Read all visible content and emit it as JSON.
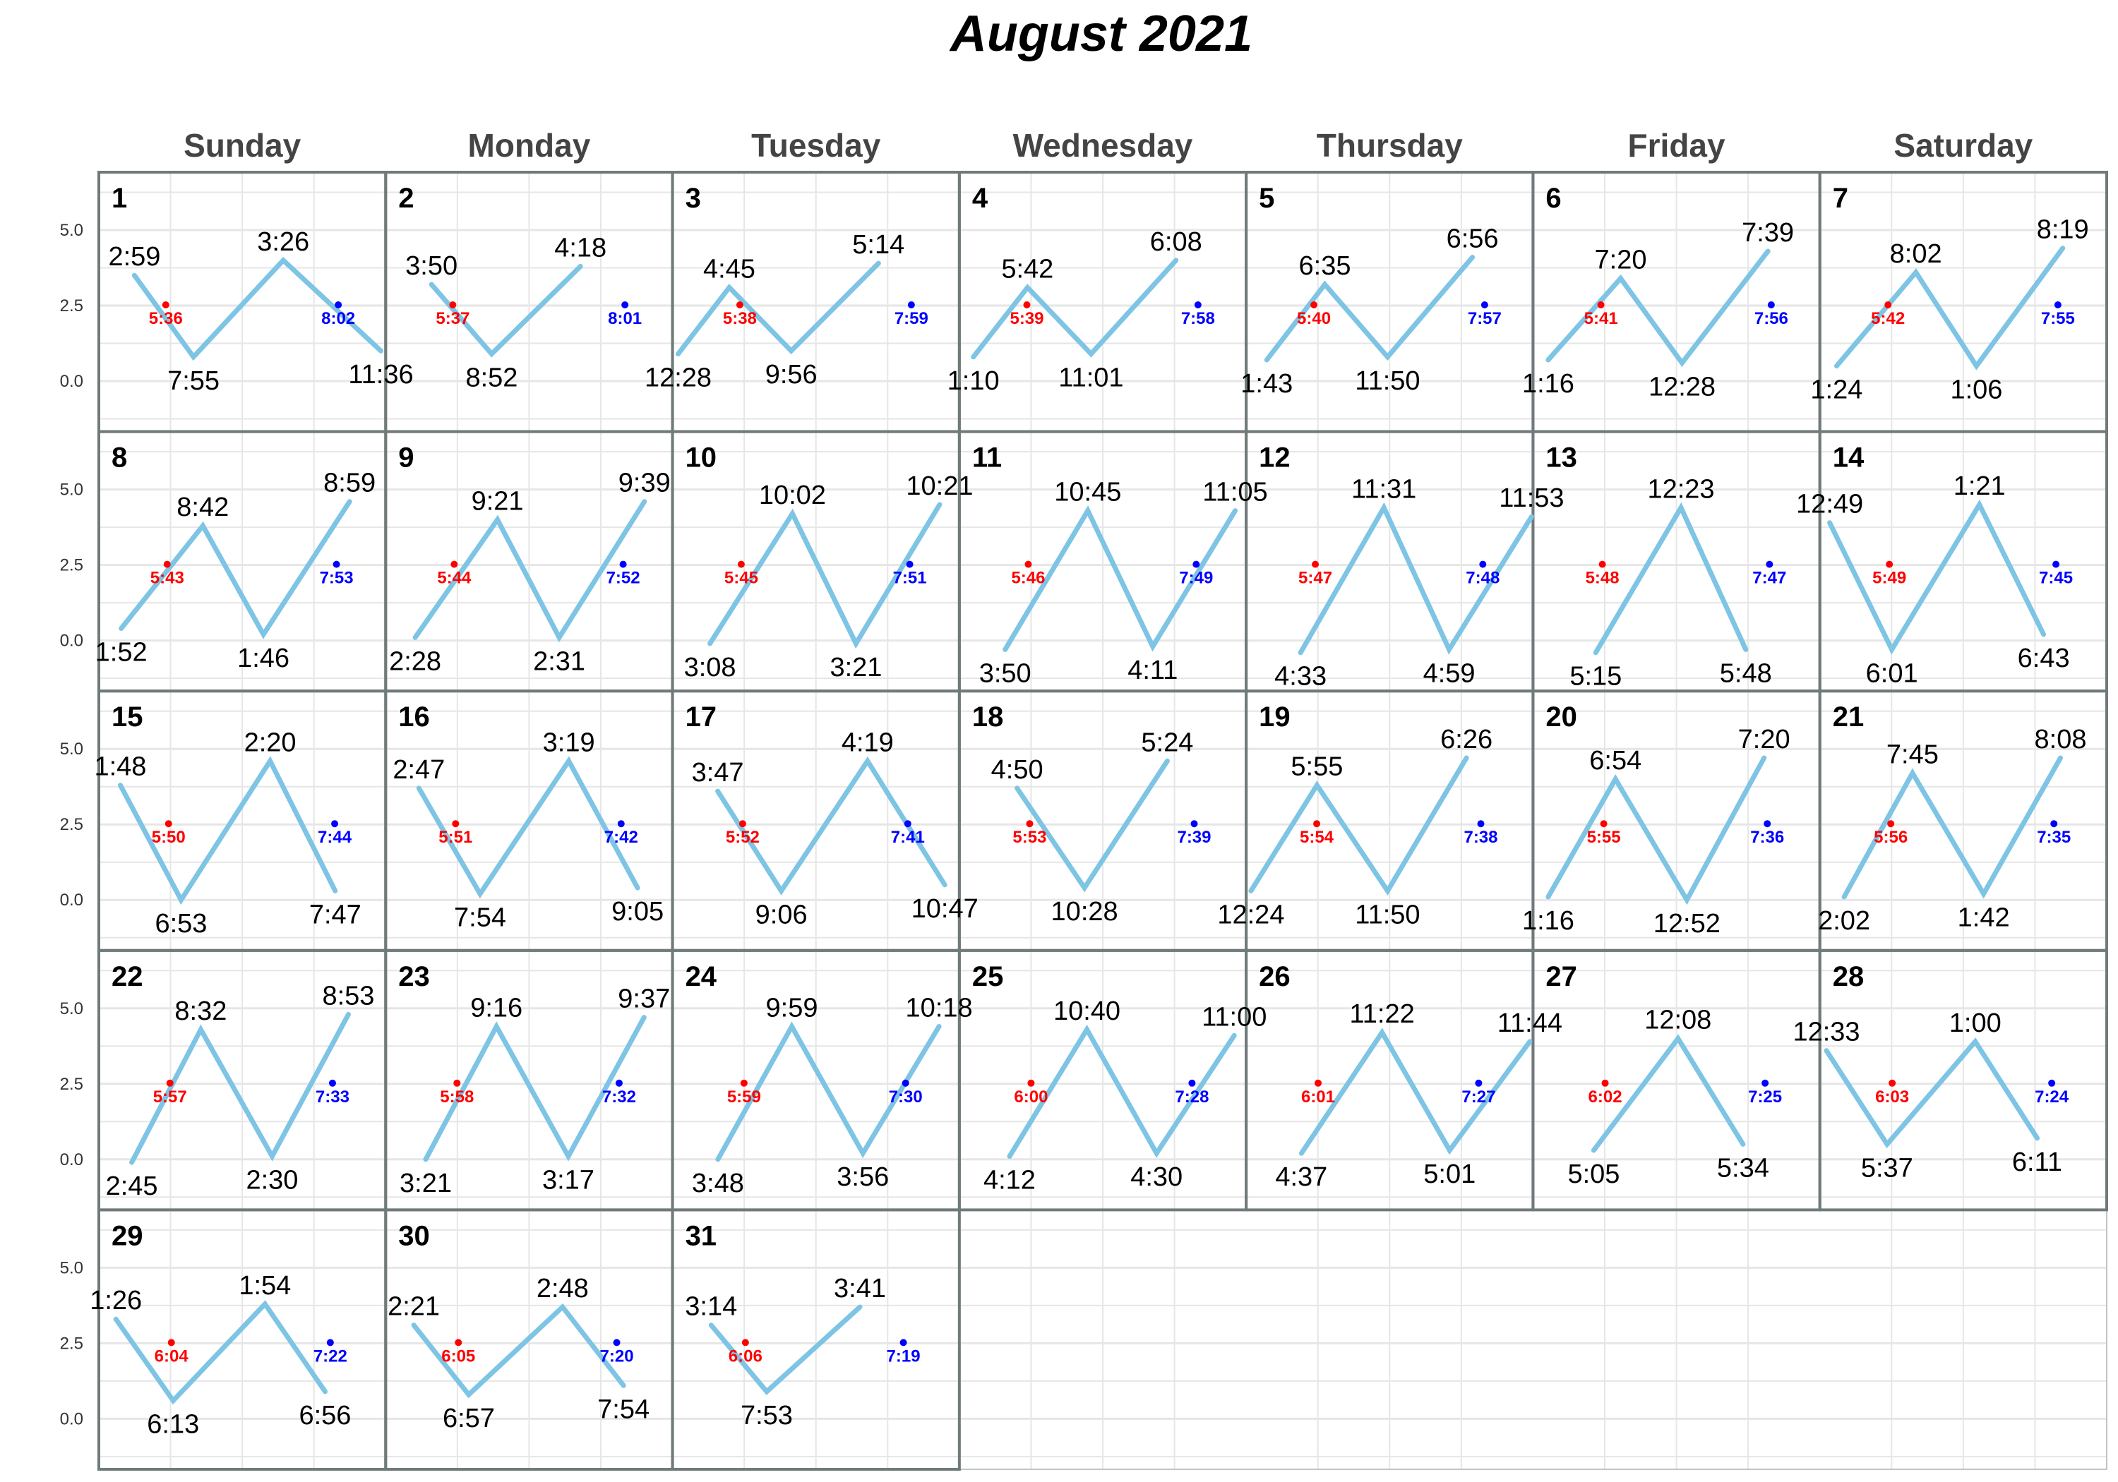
{
  "title": "August 2021",
  "weekdays": [
    "Sunday",
    "Monday",
    "Tuesday",
    "Wednesday",
    "Thursday",
    "Friday",
    "Saturday"
  ],
  "colors": {
    "tide_line": "#7EC4E4",
    "sunrise": "#FF0000",
    "sunset": "#0000FF",
    "cell_border": "#707a7a",
    "grid": "#e6e6e6"
  },
  "chart_data": {
    "type": "line",
    "title": "August 2021",
    "first_weekday_index": 0,
    "days_in_month": 31,
    "y_ticks": [
      0.0,
      2.5,
      5.0
    ],
    "y_tick_labels": [
      "0.0",
      "2.5",
      "5.0"
    ],
    "ylim": [
      -1.5,
      6.8
    ],
    "x_units": "hours",
    "xlim": [
      0,
      24
    ],
    "sun_marker_height": 2.5,
    "days": [
      {
        "day": 1,
        "sunrise": "5:36",
        "sunset": "8:02",
        "tides": [
          {
            "t": 2.98,
            "h": 3.5,
            "label": "2:59"
          },
          {
            "t": 7.92,
            "h": 0.8,
            "label": "7:55"
          },
          {
            "t": 15.43,
            "h": 4.0,
            "label": "3:26"
          },
          {
            "t": 23.6,
            "h": 1.0,
            "label": "11:36"
          }
        ]
      },
      {
        "day": 2,
        "sunrise": "5:37",
        "sunset": "8:01",
        "tides": [
          {
            "t": 3.83,
            "h": 3.2,
            "label": "3:50"
          },
          {
            "t": 8.87,
            "h": 0.9,
            "label": "8:52"
          },
          {
            "t": 16.3,
            "h": 3.8,
            "label": "4:18"
          }
        ]
      },
      {
        "day": 3,
        "sunrise": "5:38",
        "sunset": "7:59",
        "tides": [
          {
            "t": 0.47,
            "h": 0.9,
            "label": "12:28"
          },
          {
            "t": 4.75,
            "h": 3.1,
            "label": "4:45"
          },
          {
            "t": 9.93,
            "h": 1.0,
            "label": "9:56"
          },
          {
            "t": 17.23,
            "h": 3.9,
            "label": "5:14"
          }
        ]
      },
      {
        "day": 4,
        "sunrise": "5:39",
        "sunset": "7:58",
        "tides": [
          {
            "t": 1.17,
            "h": 0.8,
            "label": "1:10"
          },
          {
            "t": 5.7,
            "h": 3.1,
            "label": "5:42"
          },
          {
            "t": 11.02,
            "h": 0.9,
            "label": "11:01"
          },
          {
            "t": 18.13,
            "h": 4.0,
            "label": "6:08"
          }
        ]
      },
      {
        "day": 5,
        "sunrise": "5:40",
        "sunset": "7:57",
        "tides": [
          {
            "t": 1.72,
            "h": 0.7,
            "label": "1:43"
          },
          {
            "t": 6.58,
            "h": 3.2,
            "label": "6:35"
          },
          {
            "t": 11.83,
            "h": 0.8,
            "label": "11:50"
          },
          {
            "t": 18.93,
            "h": 4.1,
            "label": "6:56"
          }
        ]
      },
      {
        "day": 6,
        "sunrise": "5:41",
        "sunset": "7:56",
        "tides": [
          {
            "t": 1.27,
            "h": 0.7,
            "label": "1:16"
          },
          {
            "t": 7.33,
            "h": 3.4,
            "label": "7:20"
          },
          {
            "t": 12.47,
            "h": 0.6,
            "label": "12:28"
          },
          {
            "t": 19.65,
            "h": 4.3,
            "label": "7:39"
          }
        ]
      },
      {
        "day": 7,
        "sunrise": "5:42",
        "sunset": "7:55",
        "tides": [
          {
            "t": 1.4,
            "h": 0.5,
            "label": "1:24"
          },
          {
            "t": 8.03,
            "h": 3.6,
            "label": "8:02"
          },
          {
            "t": 13.1,
            "h": 0.5,
            "label": "1:06"
          },
          {
            "t": 20.32,
            "h": 4.4,
            "label": "8:19"
          }
        ]
      },
      {
        "day": 8,
        "sunrise": "5:43",
        "sunset": "7:53",
        "tides": [
          {
            "t": 1.87,
            "h": 0.4,
            "label": "1:52"
          },
          {
            "t": 8.7,
            "h": 3.8,
            "label": "8:42"
          },
          {
            "t": 13.77,
            "h": 0.2,
            "label": "1:46"
          },
          {
            "t": 20.98,
            "h": 4.6,
            "label": "8:59"
          }
        ]
      },
      {
        "day": 9,
        "sunrise": "5:44",
        "sunset": "7:52",
        "tides": [
          {
            "t": 2.47,
            "h": 0.1,
            "label": "2:28"
          },
          {
            "t": 9.35,
            "h": 4.0,
            "label": "9:21"
          },
          {
            "t": 14.52,
            "h": 0.1,
            "label": "2:31"
          },
          {
            "t": 21.65,
            "h": 4.6,
            "label": "9:39"
          }
        ]
      },
      {
        "day": 10,
        "sunrise": "5:45",
        "sunset": "7:51",
        "tides": [
          {
            "t": 3.13,
            "h": -0.1,
            "label": "3:08"
          },
          {
            "t": 10.03,
            "h": 4.2,
            "label": "10:02"
          },
          {
            "t": 15.35,
            "h": -0.1,
            "label": "3:21"
          },
          {
            "t": 22.35,
            "h": 4.5,
            "label": "10:21"
          }
        ]
      },
      {
        "day": 11,
        "sunrise": "5:46",
        "sunset": "7:49",
        "tides": [
          {
            "t": 3.83,
            "h": -0.3,
            "label": "3:50"
          },
          {
            "t": 10.75,
            "h": 4.3,
            "label": "10:45"
          },
          {
            "t": 16.18,
            "h": -0.2,
            "label": "4:11"
          },
          {
            "t": 23.08,
            "h": 4.3,
            "label": "11:05"
          }
        ]
      },
      {
        "day": 12,
        "sunrise": "5:47",
        "sunset": "7:48",
        "tides": [
          {
            "t": 4.55,
            "h": -0.4,
            "label": "4:33"
          },
          {
            "t": 11.52,
            "h": 4.4,
            "label": "11:31"
          },
          {
            "t": 16.98,
            "h": -0.3,
            "label": "4:59"
          },
          {
            "t": 23.88,
            "h": 4.1,
            "label": "11:53"
          }
        ]
      },
      {
        "day": 13,
        "sunrise": "5:48",
        "sunset": "7:47",
        "tides": [
          {
            "t": 5.25,
            "h": -0.4,
            "label": "5:15"
          },
          {
            "t": 12.38,
            "h": 4.4,
            "label": "12:23"
          },
          {
            "t": 17.8,
            "h": -0.3,
            "label": "5:48"
          }
        ]
      },
      {
        "day": 14,
        "sunrise": "5:49",
        "sunset": "7:45",
        "tides": [
          {
            "t": 0.82,
            "h": 3.9,
            "label": "12:49"
          },
          {
            "t": 6.02,
            "h": -0.3,
            "label": "6:01"
          },
          {
            "t": 13.35,
            "h": 4.5,
            "label": "1:21"
          },
          {
            "t": 18.72,
            "h": 0.2,
            "label": "6:43"
          }
        ]
      },
      {
        "day": 15,
        "sunrise": "5:50",
        "sunset": "7:44",
        "tides": [
          {
            "t": 1.8,
            "h": 3.8,
            "label": "1:48"
          },
          {
            "t": 6.88,
            "h": 0.0,
            "label": "6:53"
          },
          {
            "t": 14.33,
            "h": 4.6,
            "label": "2:20"
          },
          {
            "t": 19.78,
            "h": 0.3,
            "label": "7:47"
          }
        ]
      },
      {
        "day": 16,
        "sunrise": "5:51",
        "sunset": "7:42",
        "tides": [
          {
            "t": 2.78,
            "h": 3.7,
            "label": "2:47"
          },
          {
            "t": 7.9,
            "h": 0.2,
            "label": "7:54"
          },
          {
            "t": 15.32,
            "h": 4.6,
            "label": "3:19"
          },
          {
            "t": 21.08,
            "h": 0.4,
            "label": "9:05"
          }
        ]
      },
      {
        "day": 17,
        "sunrise": "5:52",
        "sunset": "7:41",
        "tides": [
          {
            "t": 3.78,
            "h": 3.6,
            "label": "3:47"
          },
          {
            "t": 9.1,
            "h": 0.3,
            "label": "9:06"
          },
          {
            "t": 16.32,
            "h": 4.6,
            "label": "4:19"
          },
          {
            "t": 22.78,
            "h": 0.5,
            "label": "10:47"
          }
        ]
      },
      {
        "day": 18,
        "sunrise": "5:53",
        "sunset": "7:39",
        "tides": [
          {
            "t": 4.83,
            "h": 3.7,
            "label": "4:50"
          },
          {
            "t": 10.47,
            "h": 0.4,
            "label": "10:28"
          },
          {
            "t": 17.4,
            "h": 4.6,
            "label": "5:24"
          }
        ]
      },
      {
        "day": 19,
        "sunrise": "5:54",
        "sunset": "7:38",
        "tides": [
          {
            "t": 0.4,
            "h": 0.3,
            "label": "12:24"
          },
          {
            "t": 5.92,
            "h": 3.8,
            "label": "5:55"
          },
          {
            "t": 11.83,
            "h": 0.3,
            "label": "11:50"
          },
          {
            "t": 18.43,
            "h": 4.7,
            "label": "6:26"
          }
        ]
      },
      {
        "day": 20,
        "sunrise": "5:55",
        "sunset": "7:36",
        "tides": [
          {
            "t": 1.27,
            "h": 0.1,
            "label": "1:16"
          },
          {
            "t": 6.9,
            "h": 4.0,
            "label": "6:54"
          },
          {
            "t": 12.87,
            "h": 0.0,
            "label": "12:52"
          },
          {
            "t": 19.33,
            "h": 4.7,
            "label": "7:20"
          }
        ]
      },
      {
        "day": 21,
        "sunrise": "5:56",
        "sunset": "7:35",
        "tides": [
          {
            "t": 2.03,
            "h": 0.1,
            "label": "2:02"
          },
          {
            "t": 7.75,
            "h": 4.2,
            "label": "7:45"
          },
          {
            "t": 13.7,
            "h": 0.2,
            "label": "1:42"
          },
          {
            "t": 20.13,
            "h": 4.7,
            "label": "8:08"
          }
        ]
      },
      {
        "day": 22,
        "sunrise": "5:57",
        "sunset": "7:33",
        "tides": [
          {
            "t": 2.75,
            "h": -0.1,
            "label": "2:45"
          },
          {
            "t": 8.53,
            "h": 4.3,
            "label": "8:32"
          },
          {
            "t": 14.5,
            "h": 0.1,
            "label": "2:30"
          },
          {
            "t": 20.88,
            "h": 4.8,
            "label": "8:53"
          }
        ]
      },
      {
        "day": 23,
        "sunrise": "5:58",
        "sunset": "7:32",
        "tides": [
          {
            "t": 3.35,
            "h": 0.0,
            "label": "3:21"
          },
          {
            "t": 9.27,
            "h": 4.4,
            "label": "9:16"
          },
          {
            "t": 15.28,
            "h": 0.1,
            "label": "3:17"
          },
          {
            "t": 21.62,
            "h": 4.7,
            "label": "9:37"
          }
        ]
      },
      {
        "day": 24,
        "sunrise": "5:59",
        "sunset": "7:30",
        "tides": [
          {
            "t": 3.8,
            "h": 0.0,
            "label": "3:48"
          },
          {
            "t": 9.98,
            "h": 4.4,
            "label": "9:59"
          },
          {
            "t": 15.93,
            "h": 0.2,
            "label": "3:56"
          },
          {
            "t": 22.3,
            "h": 4.4,
            "label": "10:18"
          }
        ]
      },
      {
        "day": 25,
        "sunrise": "6:00",
        "sunset": "7:28",
        "tides": [
          {
            "t": 4.2,
            "h": 0.1,
            "label": "4:12"
          },
          {
            "t": 10.67,
            "h": 4.3,
            "label": "10:40"
          },
          {
            "t": 16.5,
            "h": 0.2,
            "label": "4:30"
          },
          {
            "t": 23.0,
            "h": 4.1,
            "label": "11:00"
          }
        ]
      },
      {
        "day": 26,
        "sunrise": "6:01",
        "sunset": "7:27",
        "tides": [
          {
            "t": 4.62,
            "h": 0.2,
            "label": "4:37"
          },
          {
            "t": 11.37,
            "h": 4.2,
            "label": "11:22"
          },
          {
            "t": 17.02,
            "h": 0.3,
            "label": "5:01"
          },
          {
            "t": 23.73,
            "h": 3.9,
            "label": "11:44"
          }
        ]
      },
      {
        "day": 27,
        "sunrise": "6:02",
        "sunset": "7:25",
        "tides": [
          {
            "t": 5.08,
            "h": 0.3,
            "label": "5:05"
          },
          {
            "t": 12.13,
            "h": 4.0,
            "label": "12:08"
          },
          {
            "t": 17.57,
            "h": 0.5,
            "label": "5:34"
          }
        ]
      },
      {
        "day": 28,
        "sunrise": "6:03",
        "sunset": "7:24",
        "tides": [
          {
            "t": 0.55,
            "h": 3.6,
            "label": "12:33"
          },
          {
            "t": 5.62,
            "h": 0.5,
            "label": "5:37"
          },
          {
            "t": 13.0,
            "h": 3.9,
            "label": "1:00"
          },
          {
            "t": 18.18,
            "h": 0.7,
            "label": "6:11"
          }
        ]
      },
      {
        "day": 29,
        "sunrise": "6:04",
        "sunset": "7:22",
        "tides": [
          {
            "t": 1.43,
            "h": 3.3,
            "label": "1:26"
          },
          {
            "t": 6.22,
            "h": 0.6,
            "label": "6:13"
          },
          {
            "t": 13.9,
            "h": 3.8,
            "label": "1:54"
          },
          {
            "t": 18.93,
            "h": 0.9,
            "label": "6:56"
          }
        ]
      },
      {
        "day": 30,
        "sunrise": "6:05",
        "sunset": "7:20",
        "tides": [
          {
            "t": 2.35,
            "h": 3.1,
            "label": "2:21"
          },
          {
            "t": 6.95,
            "h": 0.8,
            "label": "6:57"
          },
          {
            "t": 14.8,
            "h": 3.7,
            "label": "2:48"
          },
          {
            "t": 19.9,
            "h": 1.1,
            "label": "7:54"
          }
        ]
      },
      {
        "day": 31,
        "sunrise": "6:06",
        "sunset": "7:19",
        "tides": [
          {
            "t": 3.23,
            "h": 3.1,
            "label": "3:14"
          },
          {
            "t": 7.88,
            "h": 0.9,
            "label": "7:53"
          },
          {
            "t": 15.68,
            "h": 3.7,
            "label": "3:41"
          }
        ]
      }
    ]
  }
}
